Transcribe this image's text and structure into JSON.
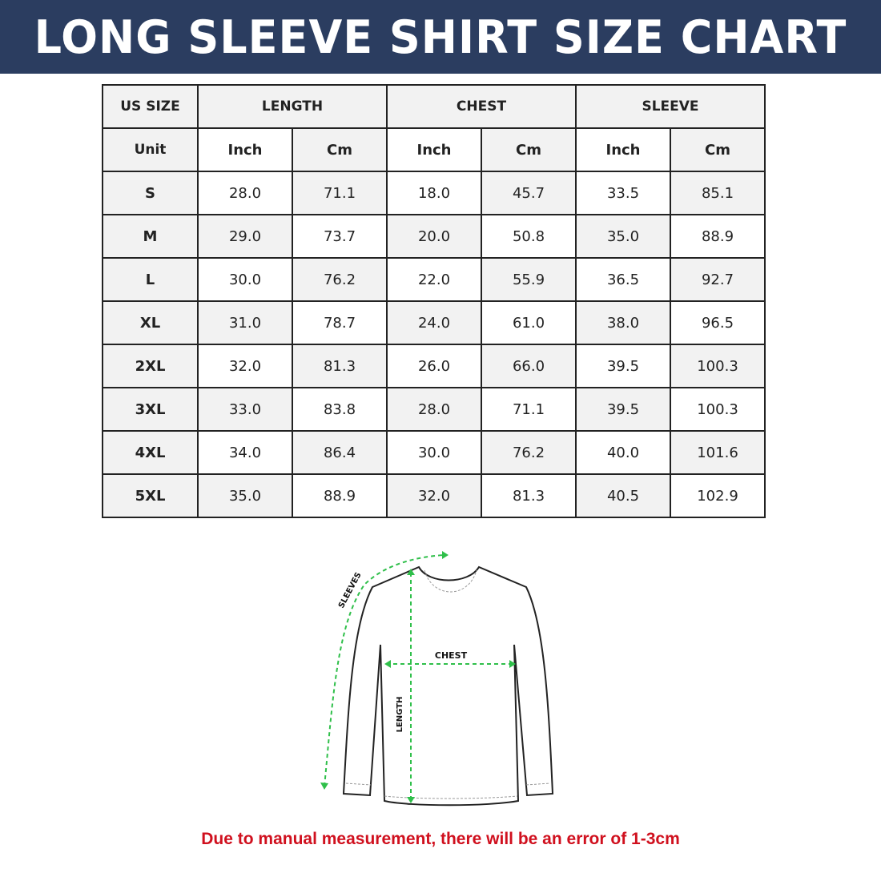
{
  "title": "LONG SLEEVE SHIRT SIZE CHART",
  "colors": {
    "banner": "#2b3d60",
    "note": "#d0101e",
    "arrows": "#2fbf4a"
  },
  "table": {
    "header": {
      "size": "US SIZE",
      "groups": [
        "LENGTH",
        "CHEST",
        "SLEEVE"
      ]
    },
    "units": {
      "label": "Unit",
      "values": [
        "Inch",
        "Cm",
        "Inch",
        "Cm",
        "Inch",
        "Cm"
      ]
    },
    "rows": [
      {
        "size": "S",
        "values": [
          "28.0",
          "71.1",
          "18.0",
          "45.7",
          "33.5",
          "85.1"
        ]
      },
      {
        "size": "M",
        "values": [
          "29.0",
          "73.7",
          "20.0",
          "50.8",
          "35.0",
          "88.9"
        ]
      },
      {
        "size": "L",
        "values": [
          "30.0",
          "76.2",
          "22.0",
          "55.9",
          "36.5",
          "92.7"
        ]
      },
      {
        "size": "XL",
        "values": [
          "31.0",
          "78.7",
          "24.0",
          "61.0",
          "38.0",
          "96.5"
        ]
      },
      {
        "size": "2XL",
        "values": [
          "32.0",
          "81.3",
          "26.0",
          "66.0",
          "39.5",
          "100.3"
        ]
      },
      {
        "size": "3XL",
        "values": [
          "33.0",
          "83.8",
          "28.0",
          "71.1",
          "39.5",
          "100.3"
        ]
      },
      {
        "size": "4XL",
        "values": [
          "34.0",
          "86.4",
          "30.0",
          "76.2",
          "40.0",
          "101.6"
        ]
      },
      {
        "size": "5XL",
        "values": [
          "35.0",
          "88.9",
          "32.0",
          "81.3",
          "40.5",
          "102.9"
        ]
      }
    ]
  },
  "diagram": {
    "sleeves": "SLEEVES",
    "chest": "CHEST",
    "length": "LENGTH"
  },
  "note": "Due to manual measurement, there will be an error of 1-3cm"
}
